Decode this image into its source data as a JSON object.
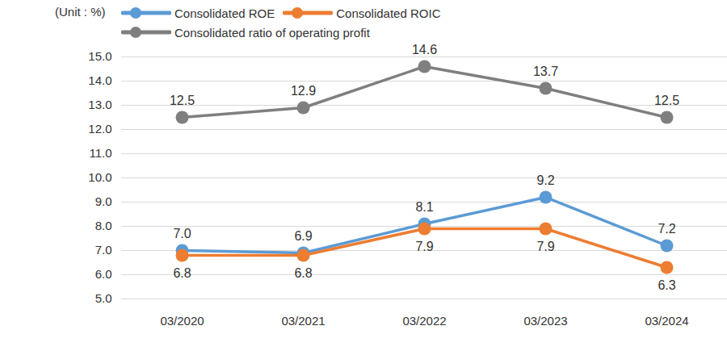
{
  "chart_data": {
    "type": "line",
    "ylabel": "(Unit : %)",
    "categories": [
      "03/2020",
      "03/2021",
      "03/2022",
      "03/2023",
      "03/2024"
    ],
    "series": [
      {
        "name": "Consolidated ROE",
        "color": "#5b9bd5",
        "marker": "circle",
        "values": [
          7.0,
          6.9,
          8.1,
          9.2,
          7.2
        ],
        "value_labels": [
          "7.0",
          "6.9",
          "8.1",
          "9.2",
          "7.2"
        ]
      },
      {
        "name": "Consolidated ROIC",
        "color": "#ed7d31",
        "marker": "circle",
        "values": [
          6.8,
          6.8,
          7.9,
          7.9,
          6.3
        ],
        "value_labels": [
          "6.8",
          "6.8",
          "7.9",
          "7.9",
          "6.3"
        ]
      },
      {
        "name": "Consolidated ratio of operating profit",
        "color": "#7f7f7f",
        "marker": "circle",
        "values": [
          12.5,
          12.9,
          14.6,
          13.7,
          12.5
        ],
        "value_labels": [
          "12.5",
          "12.9",
          "14.6",
          "13.7",
          "12.5"
        ]
      }
    ],
    "ylim": [
      5,
      15
    ],
    "yticks": [
      {
        "value": 5,
        "label": "5.0"
      },
      {
        "value": 6,
        "label": "6.0"
      },
      {
        "value": 7,
        "label": "7.0"
      },
      {
        "value": 8,
        "label": "8.0"
      },
      {
        "value": 9,
        "label": "9.0"
      },
      {
        "value": 10,
        "label": "10.0"
      },
      {
        "value": 11,
        "label": "11.0"
      },
      {
        "value": 12,
        "label": "12.0"
      },
      {
        "value": 13,
        "label": "13.0"
      },
      {
        "value": 14,
        "label": "14.0"
      },
      {
        "value": 15,
        "label": "15.0"
      }
    ],
    "grid": true,
    "data_labels": true,
    "legend": "top"
  }
}
